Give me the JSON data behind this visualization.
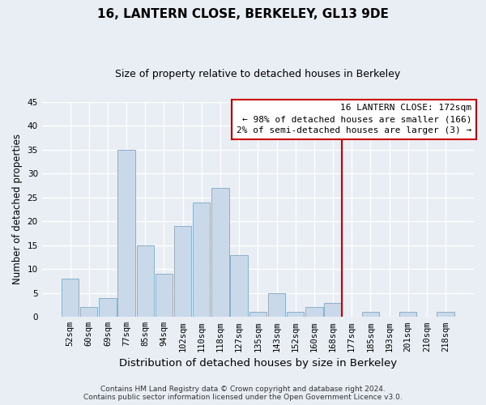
{
  "title": "16, LANTERN CLOSE, BERKELEY, GL13 9DE",
  "subtitle": "Size of property relative to detached houses in Berkeley",
  "xlabel": "Distribution of detached houses by size in Berkeley",
  "ylabel": "Number of detached properties",
  "bin_labels": [
    "52sqm",
    "60sqm",
    "69sqm",
    "77sqm",
    "85sqm",
    "94sqm",
    "102sqm",
    "110sqm",
    "118sqm",
    "127sqm",
    "135sqm",
    "143sqm",
    "152sqm",
    "160sqm",
    "168sqm",
    "177sqm",
    "185sqm",
    "193sqm",
    "201sqm",
    "210sqm",
    "218sqm"
  ],
  "bar_values": [
    8,
    2,
    4,
    35,
    15,
    9,
    19,
    24,
    27,
    13,
    1,
    5,
    1,
    2,
    3,
    0,
    1,
    0,
    1,
    0,
    1
  ],
  "bar_color": "#c9d9ea",
  "bar_edge_color": "#8ab0cc",
  "vline_color": "#cc0000",
  "ylim": [
    0,
    45
  ],
  "yticks": [
    0,
    5,
    10,
    15,
    20,
    25,
    30,
    35,
    40,
    45
  ],
  "annotation_title": "16 LANTERN CLOSE: 172sqm",
  "annotation_line1": "← 98% of detached houses are smaller (166)",
  "annotation_line2": "2% of semi-detached houses are larger (3) →",
  "footer1": "Contains HM Land Registry data © Crown copyright and database right 2024.",
  "footer2": "Contains public sector information licensed under the Open Government Licence v3.0.",
  "background_color": "#e8eef4",
  "plot_background_color": "#e8eef4",
  "grid_color": "#ffffff",
  "title_fontsize": 11,
  "subtitle_fontsize": 9,
  "ylabel_fontsize": 8.5,
  "xlabel_fontsize": 9.5,
  "tick_fontsize": 7.5,
  "ann_fontsize": 8.0,
  "footer_fontsize": 6.5
}
